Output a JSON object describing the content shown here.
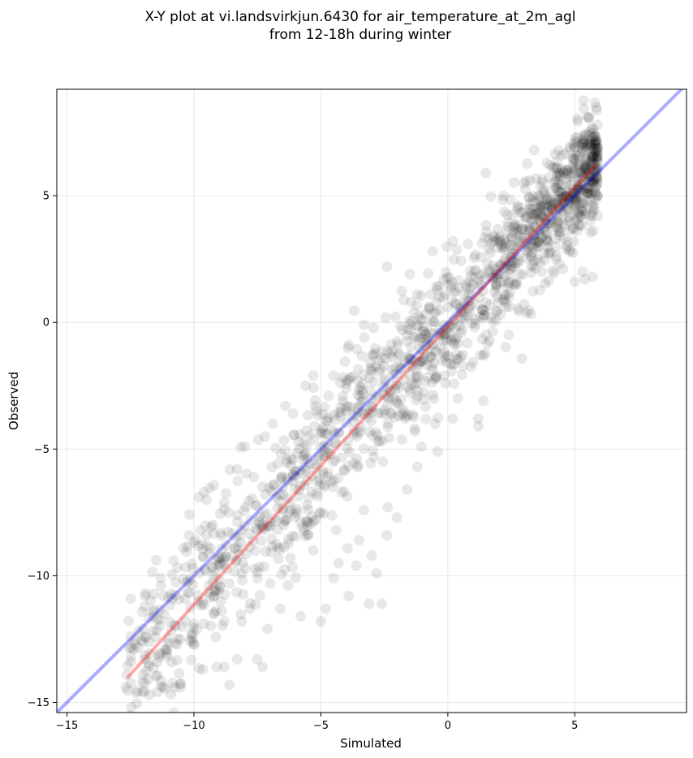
{
  "chart_data": {
    "type": "scatter",
    "title_line1": "X-Y plot at vi.landsvirkjun.6430 for air_temperature_at_2m_agl",
    "title_line2": "from 12-18h during winter",
    "xlabel": "Simulated",
    "ylabel": "Observed",
    "xlim": [
      -15.4,
      9.4
    ],
    "ylim": [
      -15.4,
      9.2
    ],
    "xticks": [
      -15,
      -10,
      -5,
      0,
      5
    ],
    "yticks": [
      -15,
      -10,
      -5,
      0,
      5
    ],
    "xtick_labels": [
      "−15",
      "−10",
      "−5",
      "0",
      "5"
    ],
    "ytick_labels": [
      "−15",
      "−10",
      "−5",
      "0",
      "5"
    ],
    "grid": true,
    "point_color": "#000000",
    "point_opacity": 0.09,
    "fit_line": {
      "color": "#ff0000",
      "x": [
        -12.6,
        5.8
      ],
      "y": [
        -14.0,
        6.2
      ]
    },
    "identity_line": {
      "color": "#0000ff",
      "x": [
        -15.4,
        9.4
      ],
      "y": [
        -15.4,
        9.4
      ]
    },
    "cluster_summary": {
      "count": 1500,
      "slope": 1.1,
      "intercept": -0.1,
      "spread_low": 1.8,
      "spread_high": 1.0,
      "x_range": [
        -12.7,
        5.9
      ]
    },
    "points": [
      [
        -12.5,
        -12.4
      ],
      [
        -11.9,
        -10.7
      ],
      [
        -11.3,
        -10.4
      ],
      [
        -10.8,
        -9.4
      ],
      [
        -10.2,
        -8.4
      ],
      [
        -9.5,
        -7.0
      ],
      [
        -9.1,
        -13.6
      ],
      [
        -8.8,
        -13.6
      ],
      [
        -8.6,
        -14.3
      ],
      [
        -8.3,
        -13.3
      ],
      [
        -7.5,
        -13.3
      ],
      [
        -7.3,
        -13.6
      ],
      [
        -8.0,
        -4.9
      ],
      [
        -7.2,
        -4.5
      ],
      [
        -6.4,
        -3.3
      ],
      [
        -5.6,
        -2.5
      ],
      [
        -5.3,
        -2.1
      ],
      [
        -4.5,
        -2.1
      ],
      [
        -3.9,
        -0.9
      ],
      [
        -3.3,
        -0.1
      ],
      [
        -2.4,
        2.2
      ],
      [
        -1.5,
        1.9
      ],
      [
        -1.2,
        1.1
      ],
      [
        -0.6,
        2.8
      ],
      [
        0.2,
        3.2
      ],
      [
        1.5,
        5.9
      ],
      [
        2.2,
        5.0
      ],
      [
        3.0,
        5.5
      ],
      [
        3.4,
        6.8
      ],
      [
        3.9,
        6.3
      ],
      [
        4.2,
        6.1
      ],
      [
        4.7,
        6.0
      ],
      [
        5.0,
        6.9
      ],
      [
        5.1,
        7.3
      ],
      [
        5.5,
        8.1
      ],
      [
        5.5,
        4.8
      ],
      [
        5.3,
        4.5
      ],
      [
        5.9,
        4.2
      ],
      [
        5.6,
        4.0
      ],
      [
        5.7,
        1.8
      ],
      [
        5.4,
        1.7
      ],
      [
        5.3,
        2.0
      ],
      [
        5.0,
        1.6
      ],
      [
        4.8,
        2.8
      ],
      [
        4.4,
        2.3
      ],
      [
        3.7,
        2.0
      ],
      [
        3.3,
        2.6
      ],
      [
        2.4,
        1.0
      ],
      [
        2.3,
        0.6
      ],
      [
        2.4,
        -0.5
      ],
      [
        1.4,
        -1.3
      ],
      [
        1.4,
        -3.1
      ],
      [
        1.2,
        -3.8
      ],
      [
        1.2,
        -4.1
      ],
      [
        0.2,
        -3.8
      ],
      [
        0.4,
        -3.0
      ],
      [
        -0.5,
        -4.0
      ],
      [
        -0.4,
        -5.1
      ],
      [
        -1.2,
        -5.7
      ],
      [
        -1.6,
        -6.6
      ],
      [
        -2.0,
        -7.7
      ],
      [
        -2.4,
        -8.4
      ],
      [
        -3.0,
        -9.2
      ],
      [
        -2.8,
        -9.9
      ],
      [
        -2.6,
        -11.1
      ],
      [
        -3.1,
        -11.1
      ],
      [
        -3.9,
        -10.8
      ],
      [
        -4.5,
        -10.1
      ],
      [
        -4.8,
        -11.3
      ],
      [
        -5.0,
        -11.8
      ],
      [
        -5.8,
        -11.6
      ],
      [
        -6.6,
        -11.3
      ],
      [
        -7.1,
        -12.1
      ],
      [
        -7.8,
        -11.3
      ],
      [
        -8.8,
        -11.8
      ],
      [
        -9.6,
        -11.9
      ],
      [
        -10.1,
        -12.3
      ],
      [
        -10.0,
        -12.7
      ],
      [
        -11.6,
        -11.6
      ],
      [
        -12.0,
        -12.1
      ],
      [
        -9.8,
        -6.9
      ],
      [
        -9.6,
        -6.7
      ],
      [
        -8.3,
        -5.8
      ],
      [
        -6.9,
        -4.0
      ],
      [
        -6.1,
        -3.6
      ],
      [
        -4.7,
        -2.9
      ],
      [
        -4.0,
        -2.6
      ],
      [
        -3.0,
        -1.8
      ],
      [
        -2.6,
        -1.4
      ],
      [
        -1.8,
        -0.3
      ],
      [
        -4.6,
        -6.3
      ],
      [
        -4.4,
        -8.2
      ],
      [
        -3.5,
        -8.6
      ],
      [
        -3.6,
        -9.6
      ],
      [
        -4.3,
        -9.5
      ],
      [
        -5.3,
        -9.0
      ],
      [
        -6.2,
        -9.3
      ],
      [
        -5.0,
        -7.5
      ],
      [
        -2.2,
        -3.6
      ],
      [
        -1.3,
        -4.2
      ]
    ]
  }
}
